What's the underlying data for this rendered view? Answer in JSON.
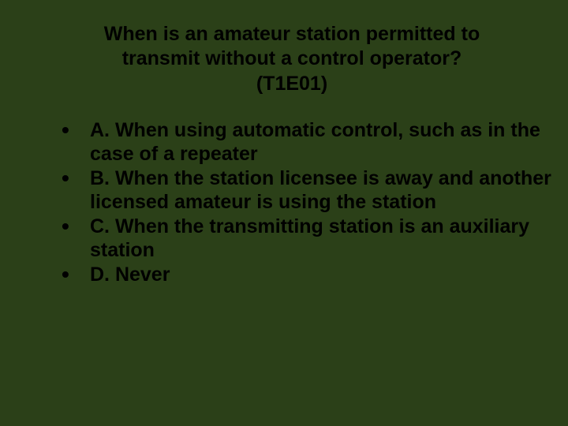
{
  "slide": {
    "background_color": "#2b4018",
    "text_color": "#000000",
    "font_family": "Verdana",
    "font_weight": "bold",
    "title_fontsize": 25,
    "answer_fontsize": 25,
    "title_line1": "When is an amateur station permitted to",
    "title_line2": "transmit without a control operator?",
    "title_line3": "(T1E01)",
    "answers": [
      {
        "label": "A. When using automatic control, such as in the case of a repeater"
      },
      {
        "label": "B. When the station licensee is away and another licensed amateur is using the station"
      },
      {
        "label": "C. When the transmitting station is an auxiliary station"
      },
      {
        "label": "D. Never"
      }
    ]
  }
}
